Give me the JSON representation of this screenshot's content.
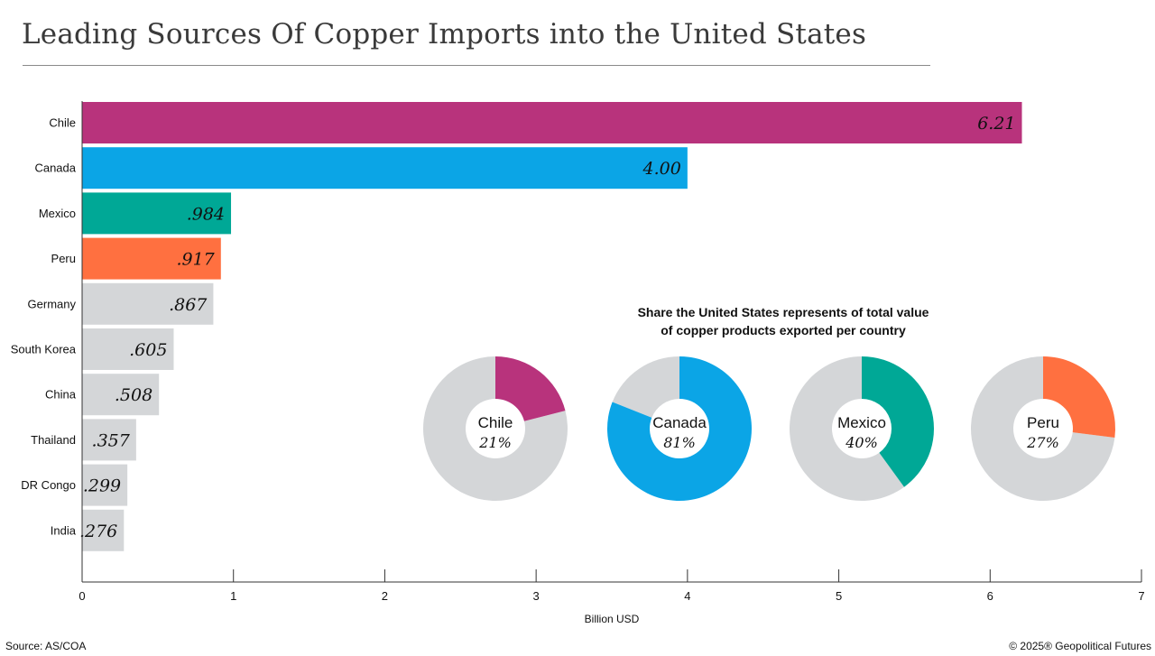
{
  "header": {
    "title": "Leading Sources Of Copper Imports into the United States"
  },
  "footer": {
    "source": "Source: AS/COA",
    "copyright": "© 2025® Geopolitical Futures"
  },
  "colors": {
    "chile": "#b8337c",
    "canada": "#0ba5e6",
    "mexico": "#00a896",
    "peru": "#ff7040",
    "other": "#d4d6d8"
  },
  "chart_data": [
    {
      "type": "bar",
      "orientation": "horizontal",
      "categories": [
        "Chile",
        "Canada",
        "Mexico",
        "Peru",
        "Germany",
        "South Korea",
        "China",
        "Thailand",
        "DR Congo",
        "India"
      ],
      "values": [
        6.21,
        4.0,
        0.984,
        0.917,
        0.867,
        0.605,
        0.508,
        0.357,
        0.299,
        0.276
      ],
      "data_labels": [
        "6.21",
        "4.00",
        ".984",
        ".917",
        ".867",
        ".605",
        ".508",
        ".357",
        ".299",
        ".276"
      ],
      "bar_colors": [
        "#b8337c",
        "#0ba5e6",
        "#00a896",
        "#ff7040",
        "#d4d6d8",
        "#d4d6d8",
        "#d4d6d8",
        "#d4d6d8",
        "#d4d6d8",
        "#d4d6d8"
      ],
      "xlabel": "Billion USD",
      "xlim": [
        0,
        7
      ],
      "xticks": [
        "0",
        "1",
        "2",
        "3",
        "4",
        "5",
        "6",
        "7"
      ],
      "grid": false
    },
    {
      "type": "pie",
      "variant": "donut",
      "title": "Share the United States represents of total value of copper products exported per country",
      "title_lines": [
        "Share the United States represents of total value",
        "of copper products exported per country"
      ],
      "slices": [
        {
          "country": "Chile",
          "share": 21,
          "label": "21%",
          "color": "#b8337c"
        },
        {
          "country": "Canada",
          "share": 81,
          "label": "81%",
          "color": "#0ba5e6"
        },
        {
          "country": "Mexico",
          "share": 40,
          "label": "40%",
          "color": "#00a896"
        },
        {
          "country": "Peru",
          "share": 27,
          "label": "27%",
          "color": "#ff7040"
        }
      ],
      "remainder_color": "#d4d6d8"
    }
  ]
}
